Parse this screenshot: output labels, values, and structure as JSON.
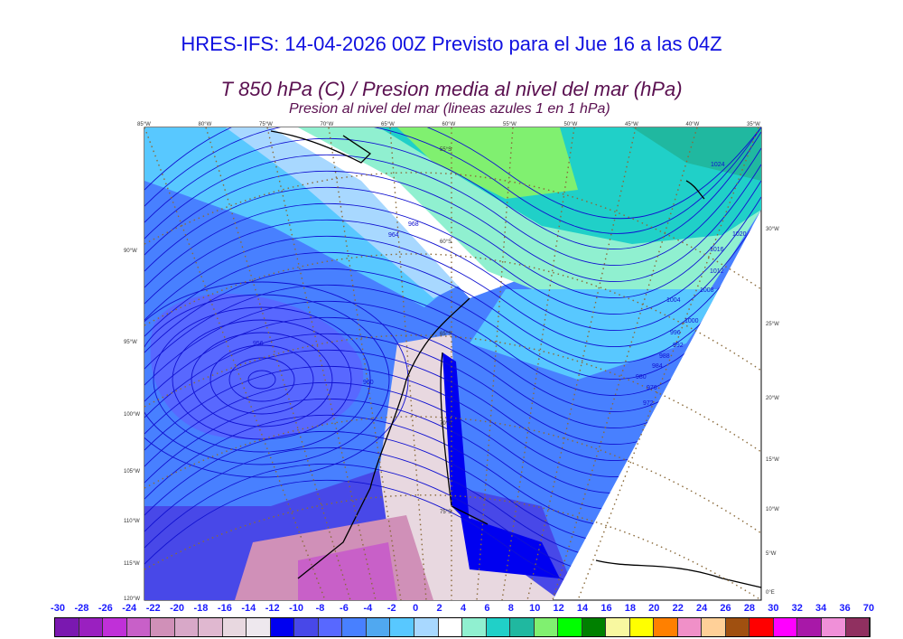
{
  "title": "HRES-IFS: 14-04-2026 00Z Previsto para el Jue 16 a las 04Z",
  "subtitle": "T 850 hPa (C) / Presion media al nivel del mar (hPa)",
  "subtitle2": "Presion al nivel del mar (lineas azules 1 en 1 hPa)",
  "map": {
    "top_lon_labels": [
      "85°W",
      "80°W",
      "75°W",
      "70°W",
      "65°W",
      "60°W",
      "55°W",
      "50°W",
      "45°W",
      "40°W",
      "35°W"
    ],
    "left_lon_labels": [
      "90°W",
      "95°W",
      "100°W",
      "105°W",
      "110°W",
      "115°W",
      "120°W"
    ],
    "right_lon_labels": [
      "30°W",
      "25°W",
      "20°W",
      "15°W",
      "10°W",
      "5°W",
      "0°E"
    ],
    "lat_labels": [
      "55°S",
      "60°S",
      "65°S",
      "70°S",
      "75°S"
    ],
    "isobar_labels": [
      "956",
      "960",
      "964",
      "968",
      "972",
      "976",
      "980",
      "984",
      "988",
      "992",
      "996",
      "1000",
      "1004",
      "1008",
      "1012",
      "1016",
      "1020",
      "1024"
    ],
    "isobar_color": "#1010d0"
  },
  "colorbar": {
    "labels": [
      "-30",
      "-28",
      "-26",
      "-24",
      "-22",
      "-20",
      "-18",
      "-16",
      "-14",
      "-12",
      "-10",
      "-8",
      "-6",
      "-4",
      "-2",
      "0",
      "2",
      "4",
      "6",
      "8",
      "10",
      "12",
      "14",
      "16",
      "18",
      "20",
      "22",
      "24",
      "26",
      "28",
      "30",
      "32",
      "34",
      "36",
      "70"
    ],
    "colors": [
      "#7a18b0",
      "#9a20c0",
      "#c030d8",
      "#c860c8",
      "#d090b8",
      "#d8a8c8",
      "#e0b8d0",
      "#e8d8e0",
      "#eee8ee",
      "#0000f0",
      "#4848e8",
      "#5868ff",
      "#4880ff",
      "#50a8f0",
      "#58c8ff",
      "#a8d8ff",
      "#ffffff",
      "#90f0d0",
      "#20d0c8",
      "#20b8a0",
      "#80f070",
      "#00ff00",
      "#008000",
      "#f8f8a0",
      "#ffff00",
      "#ff8000",
      "#f090c8",
      "#ffd098",
      "#a05010",
      "#ff0000",
      "#ff00ff",
      "#a818a8",
      "#f090d8",
      "#903060",
      "#000000"
    ]
  }
}
